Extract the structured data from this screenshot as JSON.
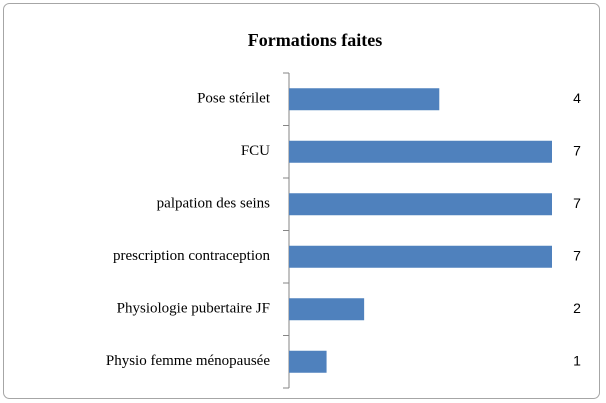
{
  "chart_data": {
    "type": "bar",
    "orientation": "horizontal",
    "title": "Formations faites",
    "categories": [
      "Pose stérilet",
      "FCU",
      "palpation des seins",
      "prescription contraception",
      "Physiologie pubertaire JF",
      "Physio femme ménopausée"
    ],
    "values": [
      4,
      7,
      7,
      7,
      2,
      1
    ],
    "color": "#4f81bd",
    "xlim": [
      0,
      7
    ],
    "grid": false
  }
}
